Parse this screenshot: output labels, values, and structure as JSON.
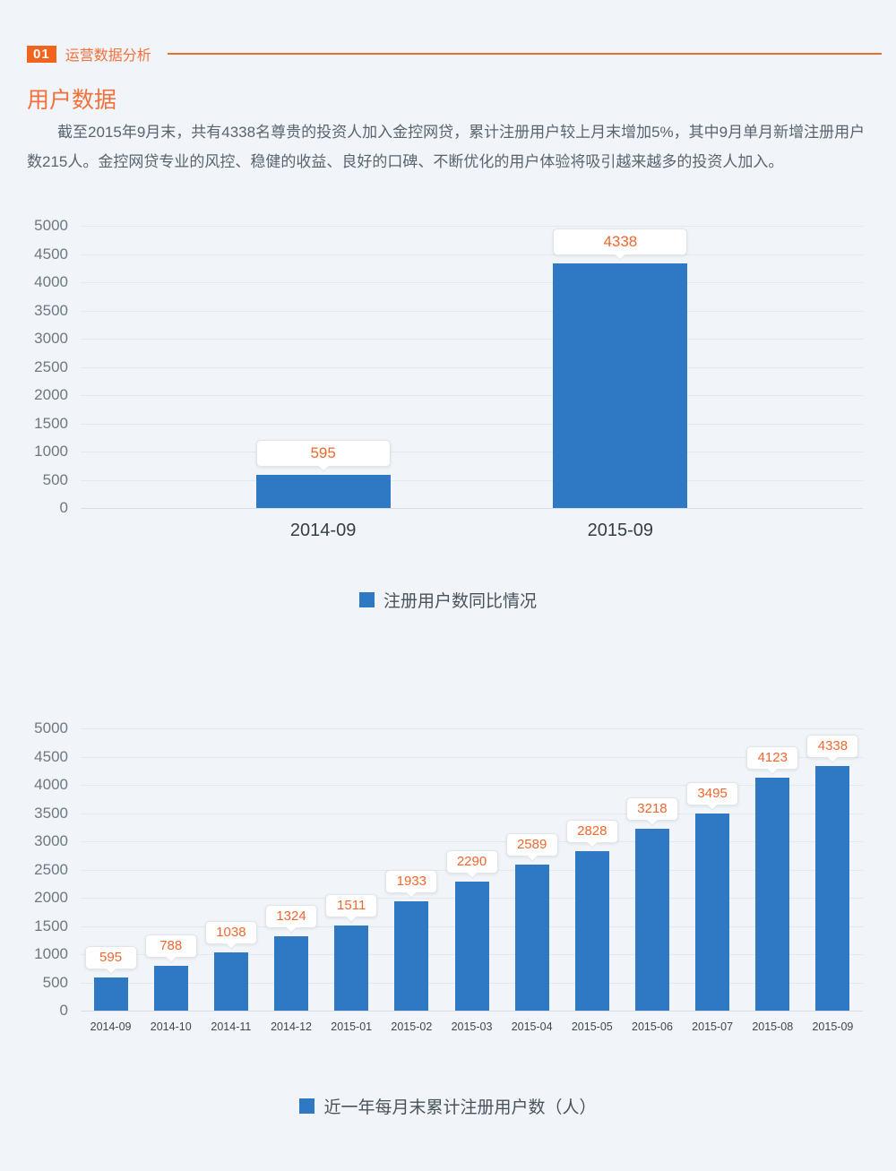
{
  "page": {
    "background": "#F1F5F9",
    "accent_orange": "#F0641E",
    "bar_blue": "#2F78C3",
    "data_label_orange": "#F1672F"
  },
  "header": {
    "badge": "01",
    "title": "运营数据分析"
  },
  "section": {
    "title": "用户数据",
    "paragraph": "截至2015年9月末，共有4338名尊贵的投资人加入金控网贷，累计注册用户较上月末增加5%，其中9月单月新增注册用户数215人。金控网贷专业的风控、稳健的收益、良好的口碑、不断优化的用户体验将吸引越来越多的投资人加入。"
  },
  "chart_data": [
    {
      "type": "bar",
      "title": "",
      "categories": [
        "2014-09",
        "2015-09"
      ],
      "values": [
        595,
        4338
      ],
      "legend": "注册用户数同比情况",
      "xlabel": "",
      "ylabel": "",
      "ylim": [
        0,
        5000
      ],
      "ytick_step": 500,
      "grid": true,
      "legend_position": "bottom-center",
      "bar_color": "#2F78C3",
      "label_color": "#F1672F",
      "data_labels": true
    },
    {
      "type": "bar",
      "title": "",
      "categories": [
        "2014-09",
        "2014-10",
        "2014-11",
        "2014-12",
        "2015-01",
        "2015-02",
        "2015-03",
        "2015-04",
        "2015-05",
        "2015-06",
        "2015-07",
        "2015-08",
        "2015-09"
      ],
      "values": [
        595,
        788,
        1038,
        1324,
        1511,
        1933,
        2290,
        2589,
        2828,
        3218,
        3495,
        4123,
        4338
      ],
      "legend": "近一年每月末累计注册用户数（人）",
      "xlabel": "",
      "ylabel": "",
      "ylim": [
        0,
        5000
      ],
      "ytick_step": 500,
      "grid": true,
      "legend_position": "bottom-center",
      "bar_color": "#2F78C3",
      "label_color": "#F1672F",
      "data_labels": true
    }
  ]
}
